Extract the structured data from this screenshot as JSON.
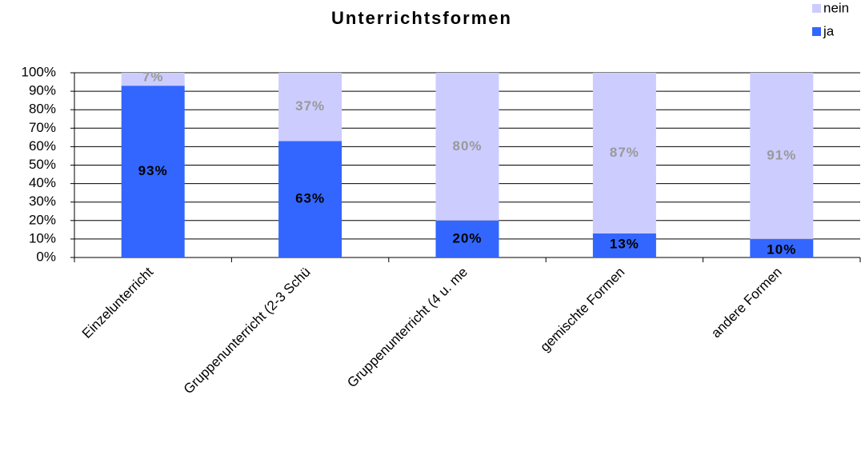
{
  "chart_data": {
    "type": "stacked_bar",
    "title": "Unterrichtsformen",
    "categories": [
      "Einzelunterricht",
      "Gruppenunterricht (2-3 Schü",
      "Gruppenunterricht (4 u. me",
      "gemischte Formen",
      "andere Formen"
    ],
    "series": [
      {
        "name": "ja",
        "color": "#3366ff",
        "values": [
          93,
          63,
          20,
          13,
          10
        ],
        "value_labels": [
          "93%",
          "63%",
          "20%",
          "13%",
          "10%"
        ],
        "label_color": "#000000"
      },
      {
        "name": "nein",
        "color": "#ccccff",
        "values": [
          7,
          37,
          80,
          87,
          91
        ],
        "value_labels": [
          "7%",
          "37%",
          "80%",
          "87%",
          "91%"
        ],
        "label_color": "#999999"
      }
    ],
    "ylim": [
      0,
      100
    ],
    "yticks": [
      {
        "value": 0,
        "label": "0%"
      },
      {
        "value": 10,
        "label": "10%"
      },
      {
        "value": 20,
        "label": "20%"
      },
      {
        "value": 30,
        "label": "30%"
      },
      {
        "value": 40,
        "label": "40%"
      },
      {
        "value": 50,
        "label": "50%"
      },
      {
        "value": 60,
        "label": "60%"
      },
      {
        "value": 70,
        "label": "70%"
      },
      {
        "value": 80,
        "label": "80%"
      },
      {
        "value": 90,
        "label": "90%"
      },
      {
        "value": 100,
        "label": "100%"
      }
    ],
    "grid": true,
    "legend": "top-right"
  }
}
